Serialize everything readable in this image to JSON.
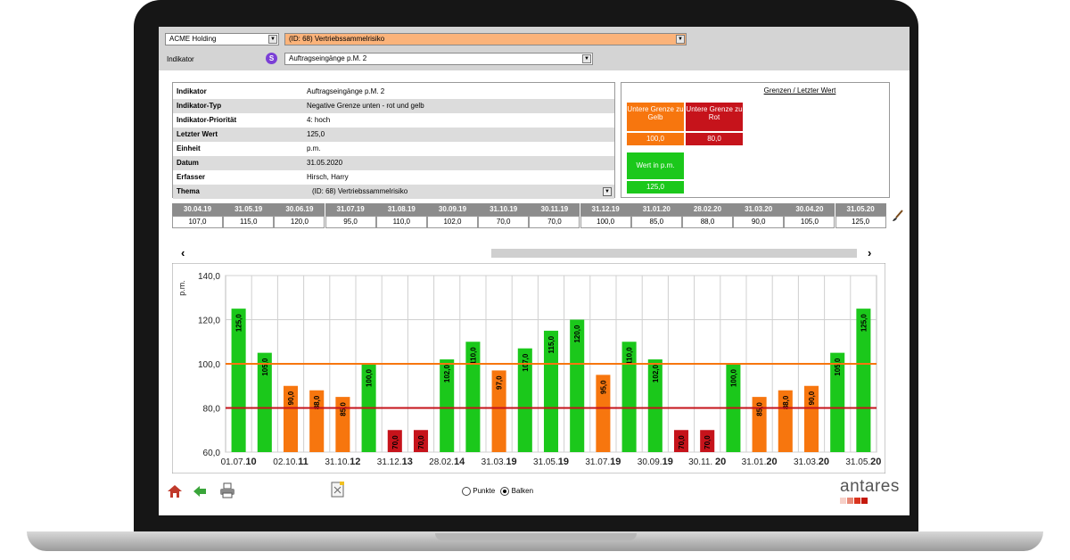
{
  "topbar": {
    "company": "ACME Holding",
    "risk": "(ID:  68) Vertriebssammelrisiko",
    "indicator_label": "Indikator",
    "indicator_badge": "S",
    "indicator": "Auftragseingänge p.M. 2"
  },
  "info": [
    {
      "k": "Indikator",
      "v": "Auftragseingänge p.M. 2"
    },
    {
      "k": "Indikator-Typ",
      "v": "Negative Grenze unten  - rot und gelb"
    },
    {
      "k": "Indikator-Priorität",
      "v": "4: hoch"
    },
    {
      "k": "Letzter Wert",
      "v": "125,0"
    },
    {
      "k": "Einheit",
      "v": "p.m."
    },
    {
      "k": "Datum",
      "v": "31.05.2020"
    },
    {
      "k": "Erfasser",
      "v": "Hirsch, Harry"
    },
    {
      "k": "Thema",
      "v": "(ID:  68) Vertriebssammelrisiko"
    }
  ],
  "limits": {
    "title": "Grenzen / Letzter Wert",
    "yellow_label": "Untere Grenze zu Gelb",
    "yellow_value": "100,0",
    "red_label": "Untere Grenze zu Rot",
    "red_value": "80,0",
    "last_label": "Wert in p.m.",
    "last_value": "125,0",
    "colors": {
      "yellow": "#f7760e",
      "red": "#c6131b",
      "green": "#1bc81b"
    }
  },
  "history": [
    {
      "d": "30.04.19",
      "v": "107,0"
    },
    {
      "d": "31.05.19",
      "v": "115,0"
    },
    {
      "d": "30.06.19",
      "v": "120,0"
    },
    {
      "d": "31.07.19",
      "v": "95,0"
    },
    {
      "d": "31.08.19",
      "v": "110,0"
    },
    {
      "d": "30.09.19",
      "v": "102,0"
    },
    {
      "d": "31.10.19",
      "v": "70,0"
    },
    {
      "d": "30.11.19",
      "v": "70,0"
    },
    {
      "d": "31.12.19",
      "v": "100,0"
    },
    {
      "d": "31.01.20",
      "v": "85,0"
    },
    {
      "d": "28.02.20",
      "v": "88,0"
    },
    {
      "d": "31.03.20",
      "v": "90,0"
    },
    {
      "d": "30.04.20",
      "v": "105,0"
    },
    {
      "d": "31.05.20",
      "v": "125,0"
    }
  ],
  "scroll": {
    "left": "‹",
    "right": "›"
  },
  "chart_data": {
    "type": "bar",
    "ylabel": "p.m.",
    "ylim": [
      60,
      140
    ],
    "yticks": [
      "60,0",
      "80,0",
      "100,0",
      "120,0",
      "140,0"
    ],
    "values": [
      125,
      105,
      90,
      88,
      85,
      100,
      70,
      70,
      102,
      110,
      97,
      107,
      115,
      120,
      95,
      110,
      102,
      70,
      70,
      100,
      85,
      88,
      90,
      105,
      125
    ],
    "labels": [
      "125,0",
      "105,0",
      "90,0",
      "88,0",
      "85,0",
      "100,0",
      "70,0",
      "70,0",
      "102,0",
      "110,0",
      "97,0",
      "107,0",
      "115,0",
      "120,0",
      "95,0",
      "110,0",
      "102,0",
      "70,0",
      "70,0",
      "100,0",
      "85,0",
      "88,0",
      "90,0",
      "105,0",
      "125,0"
    ],
    "xticks": [
      {
        "a": "01.07.",
        "b": "10"
      },
      {
        "a": "02.10.",
        "b": "11"
      },
      {
        "a": "31.10.",
        "b": "12"
      },
      {
        "a": "31.12.",
        "b": "13"
      },
      {
        "a": "28.02.",
        "b": "14"
      },
      {
        "a": "31.03.",
        "b": "19"
      },
      {
        "a": "31.05.",
        "b": "19"
      },
      {
        "a": "31.07.",
        "b": "19"
      },
      {
        "a": "30.09.",
        "b": "19"
      },
      {
        "a": "30.11. ",
        "b": "20"
      },
      {
        "a": "31.01.",
        "b": "20"
      },
      {
        "a": "31.03.",
        "b": "20"
      },
      {
        "a": "31.05.",
        "b": "20"
      }
    ],
    "yellow_limit": 100,
    "red_limit": 80,
    "grid": true
  },
  "footer": {
    "radio_points": "Punkte",
    "radio_bars": "Balken",
    "logo": "antares"
  }
}
